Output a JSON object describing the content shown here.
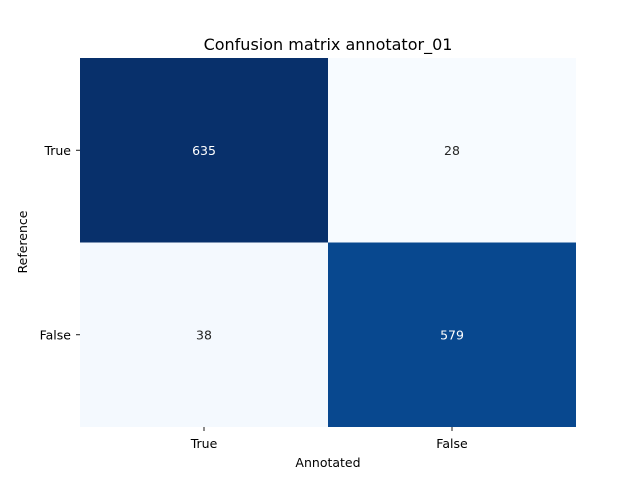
{
  "chart_data": {
    "type": "heatmap",
    "title": "Confusion matrix annotator_01",
    "xlabel": "Annotated",
    "ylabel": "Reference",
    "x_categories": [
      "True",
      "False"
    ],
    "y_categories": [
      "True",
      "False"
    ],
    "values": [
      [
        635,
        28
      ],
      [
        38,
        579
      ]
    ],
    "colormap": "Blues",
    "colorbar": false,
    "colors": {
      "low": "#f7fbff",
      "high": "#08306b",
      "text_on_light": "#262626",
      "text_on_dark": "#ffffff"
    }
  }
}
